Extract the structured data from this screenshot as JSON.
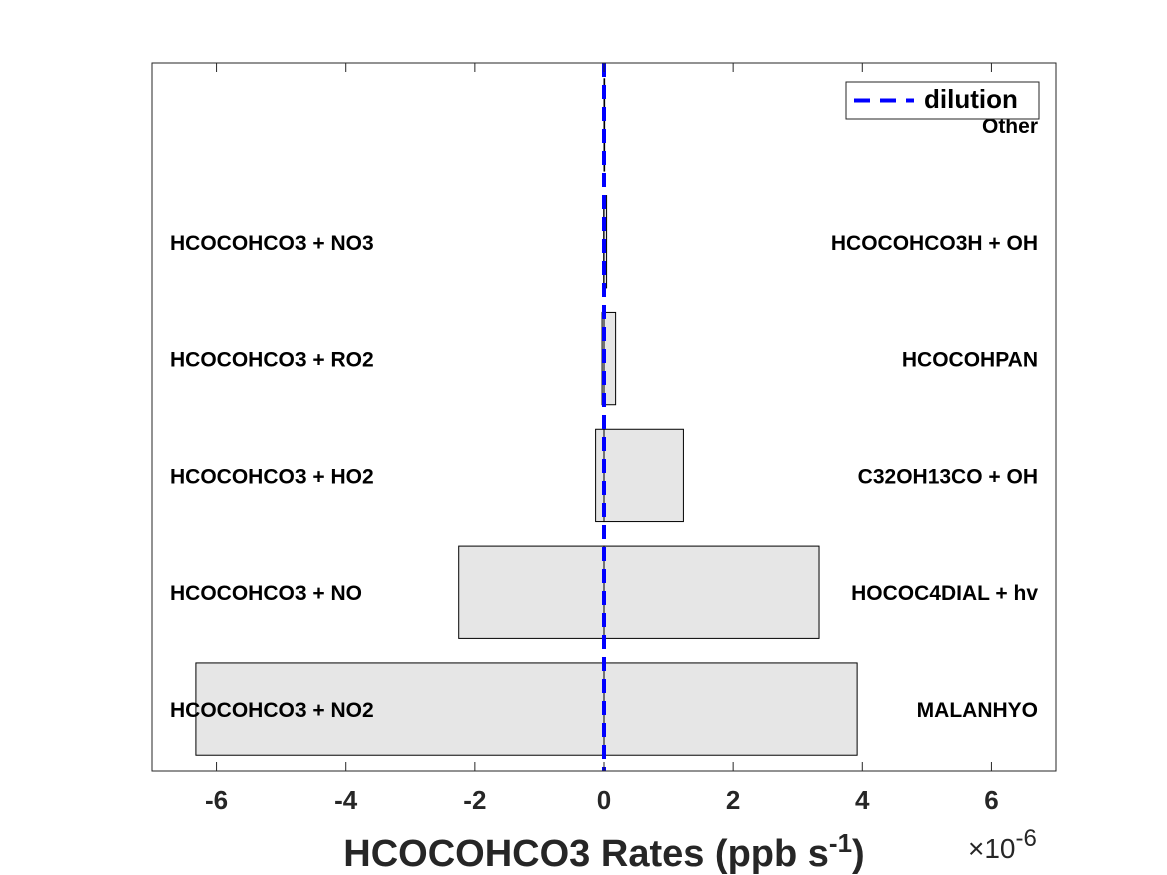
{
  "chart_data": {
    "type": "bar",
    "orientation": "horizontal",
    "xlabel_main": "HCOCOHCO3 Rates (ppb s",
    "xlabel_sup": "-1",
    "xlabel_close": ")",
    "x_exponent_prefix": "×10",
    "x_exponent": "-6",
    "xlim": [
      -7,
      7
    ],
    "xticks": [
      -6,
      -4,
      -2,
      0,
      2,
      4,
      6
    ],
    "xtick_labels": [
      "-6",
      "-4",
      "-2",
      "0",
      "2",
      "4",
      "6"
    ],
    "colors": {
      "bar_fill": "#e6e6e6",
      "bar_stroke": "#000000",
      "dilution": "#0000ff",
      "axis": "#262626"
    },
    "legend": {
      "label": "dilution",
      "placement": "top-right"
    },
    "dilution_x": 0,
    "rows": [
      {
        "negative_label": "HCOCOHCO3 + NO2",
        "negative_value": -6.32,
        "positive_label": "MALANHYO",
        "positive_value": 3.92
      },
      {
        "negative_label": "HCOCOHCO3 + NO",
        "negative_value": -2.25,
        "positive_label": "HOCOC4DIAL + hv",
        "positive_value": 3.33
      },
      {
        "negative_label": "HCOCOHCO3 + HO2",
        "negative_value": -0.13,
        "positive_label": "C32OH13CO + OH",
        "positive_value": 1.23
      },
      {
        "negative_label": "HCOCOHCO3 + RO2",
        "negative_value": -0.03,
        "positive_label": "HCOCOHPAN",
        "positive_value": 0.18
      },
      {
        "negative_label": "HCOCOHCO3 + NO3",
        "negative_value": -0.005,
        "positive_label": "HCOCOHCO3H + OH",
        "positive_value": 0.04
      },
      {
        "negative_label": "",
        "negative_value": 0,
        "positive_label": "Other",
        "positive_value": 0.01
      }
    ]
  }
}
